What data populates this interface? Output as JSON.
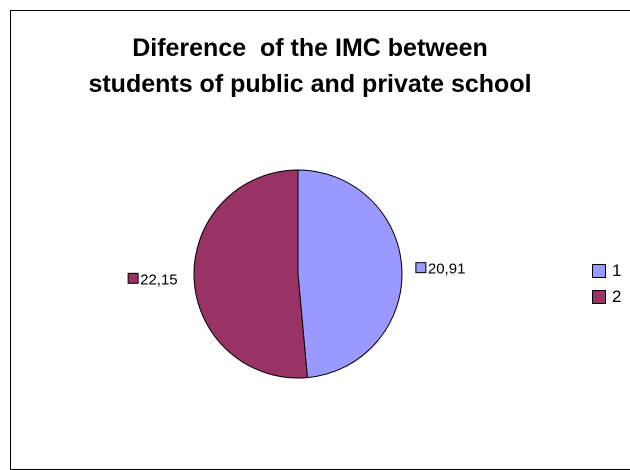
{
  "chart_data": {
    "type": "pie",
    "title": [
      "Diference  of the IMC between",
      "students of public and private school"
    ],
    "slices": [
      {
        "category": "1",
        "value": 20.91,
        "label": "20,91",
        "color": "#9999ff"
      },
      {
        "category": "2",
        "value": 22.15,
        "label": "22,15",
        "color": "#993366"
      }
    ],
    "legend": {
      "placement": "right",
      "entries": [
        "1",
        "2"
      ]
    },
    "start_angle_deg": 0,
    "direction": "clockwise"
  }
}
